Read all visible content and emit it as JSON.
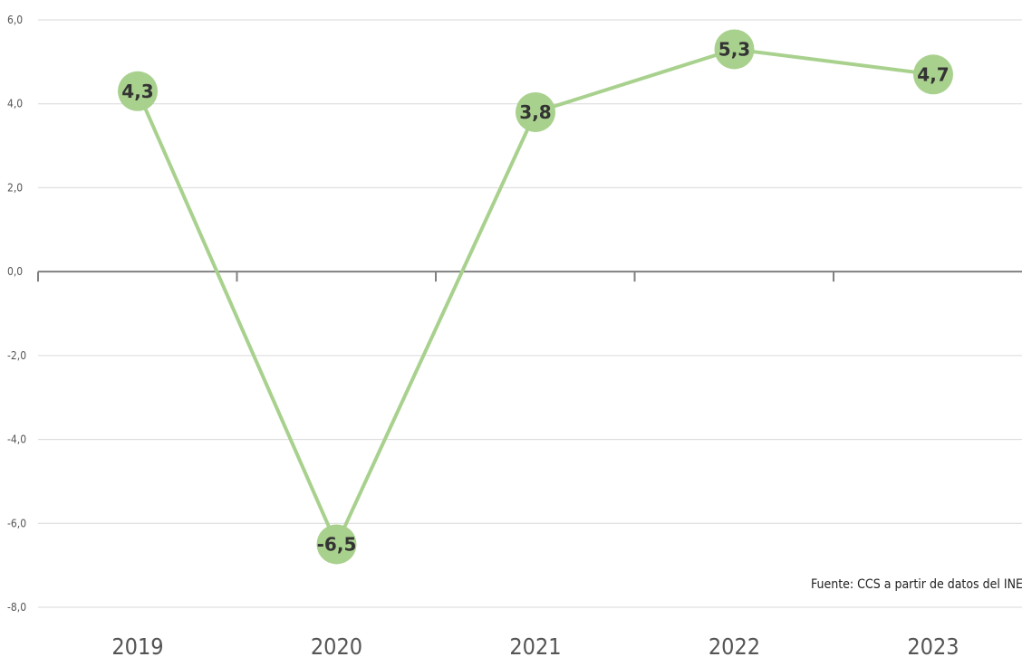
{
  "chart_data": {
    "type": "line",
    "categories": [
      "2019",
      "2020",
      "2021",
      "2022",
      "2023"
    ],
    "series": [
      {
        "values": [
          4.3,
          -6.5,
          3.8,
          5.3,
          4.7
        ]
      }
    ],
    "data_labels": [
      "4,3",
      "-6,5",
      "3,8",
      "5,3",
      "4,7"
    ],
    "y_ticks": [
      6.0,
      4.0,
      2.0,
      0.0,
      -2.0,
      -4.0,
      -6.0,
      -8.0
    ],
    "y_tick_labels": [
      "6,0",
      "4,0",
      "2,0",
      "0,0",
      "-2,0",
      "-4,0",
      "-6,0",
      "-8,0"
    ],
    "ylim": [
      -8,
      6
    ],
    "grid": true,
    "source": "Fuente: CCS a partir de datos del INE",
    "colors": {
      "line": "#a9d18e",
      "marker": "#a9d18e",
      "grid": "#d9d9d9",
      "zero_axis": "#808080"
    }
  }
}
